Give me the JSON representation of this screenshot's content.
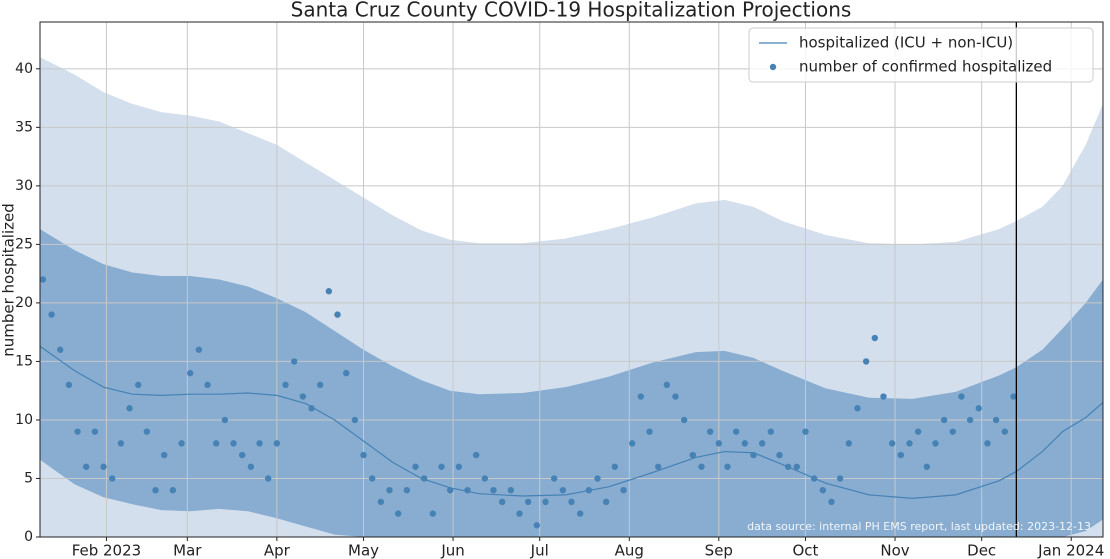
{
  "chart_data": {
    "type": "line",
    "title": "Santa Cruz County COVID-19 Hospitalization Projections",
    "ylabel": "number hospitalized",
    "annotation": "data source: internal PH EMS report, last updated: 2023-12-13",
    "vline": 346,
    "xlim": [
      8,
      376
    ],
    "ylim": [
      0,
      44
    ],
    "xticks": [
      {
        "value": 31,
        "label": "Feb 2023"
      },
      {
        "value": 59,
        "label": "Mar"
      },
      {
        "value": 90,
        "label": "Apr"
      },
      {
        "value": 120,
        "label": "May"
      },
      {
        "value": 151,
        "label": "Jun"
      },
      {
        "value": 181,
        "label": "Jul"
      },
      {
        "value": 212,
        "label": "Aug"
      },
      {
        "value": 243,
        "label": "Sep"
      },
      {
        "value": 273,
        "label": "Oct"
      },
      {
        "value": 304,
        "label": "Nov"
      },
      {
        "value": 334,
        "label": "Dec"
      },
      {
        "value": 365,
        "label": "Jan 2024"
      }
    ],
    "yticks": [
      0,
      5,
      10,
      15,
      20,
      25,
      30,
      35,
      40
    ],
    "grid": true,
    "legend": "upper right",
    "bands": [
      {
        "color": "#d3dfec",
        "x": [
          8,
          20,
          30,
          40,
          50,
          60,
          70,
          80,
          90,
          100,
          110,
          120,
          130,
          140,
          150,
          160,
          175,
          190,
          205,
          220,
          235,
          245,
          255,
          265,
          280,
          295,
          310,
          325,
          340,
          346,
          355,
          362,
          370,
          376
        ],
        "upper": [
          41,
          39.5,
          38,
          37,
          36.3,
          36,
          35.5,
          34.5,
          33.5,
          32,
          30.5,
          29,
          27.5,
          26.2,
          25.4,
          25.1,
          25.1,
          25.5,
          26.3,
          27.3,
          28.5,
          28.8,
          28.2,
          27,
          25.8,
          25.1,
          25,
          25.2,
          26.3,
          27,
          28.2,
          30,
          33.5,
          37
        ],
        "lower": [
          0,
          0,
          0,
          0,
          0,
          0,
          0,
          0,
          0,
          0,
          0,
          0,
          0,
          0,
          0,
          0,
          0,
          0,
          0,
          0,
          0,
          0,
          0,
          0,
          0,
          0,
          0,
          0,
          0,
          0,
          0,
          0,
          0,
          0
        ]
      },
      {
        "color": "#88add1",
        "x": [
          8,
          20,
          30,
          40,
          50,
          60,
          70,
          80,
          90,
          100,
          110,
          120,
          130,
          140,
          150,
          160,
          175,
          190,
          205,
          220,
          235,
          245,
          255,
          265,
          280,
          295,
          310,
          325,
          340,
          346,
          355,
          362,
          370,
          376
        ],
        "upper": [
          26.3,
          24.5,
          23.3,
          22.6,
          22.3,
          22.3,
          22,
          21.4,
          20.4,
          19.2,
          17.6,
          16,
          14.6,
          13.4,
          12.5,
          12.2,
          12.3,
          12.8,
          13.7,
          14.9,
          15.8,
          15.9,
          15.3,
          14.2,
          12.7,
          11.9,
          11.8,
          12.4,
          13.8,
          14.5,
          16,
          17.8,
          20,
          22
        ],
        "lower": [
          6.6,
          4.5,
          3.4,
          2.8,
          2.3,
          2.2,
          2.4,
          2.2,
          1.6,
          0.9,
          0.2,
          0,
          0,
          0,
          0,
          0,
          0,
          0,
          0,
          0,
          0,
          0,
          0,
          0,
          0,
          0,
          0,
          0,
          0,
          0,
          0,
          0,
          0.5,
          1.5
        ]
      }
    ],
    "series": [
      {
        "name": "hospitalized (ICU + non-ICU)",
        "type": "line",
        "color": "#4682b4",
        "x": [
          8,
          20,
          30,
          40,
          50,
          60,
          70,
          80,
          90,
          100,
          110,
          120,
          130,
          140,
          150,
          160,
          175,
          190,
          205,
          220,
          235,
          245,
          255,
          265,
          280,
          295,
          310,
          325,
          340,
          346,
          355,
          362,
          370,
          376
        ],
        "values": [
          16.3,
          14.2,
          12.8,
          12.2,
          12.1,
          12.2,
          12.2,
          12.3,
          12.1,
          11.4,
          10,
          8.2,
          6.4,
          5,
          4.2,
          3.7,
          3.5,
          3.6,
          4.3,
          5.5,
          6.8,
          7.3,
          7.2,
          6.2,
          4.6,
          3.6,
          3.3,
          3.6,
          4.8,
          5.6,
          7.3,
          9,
          10.2,
          11.5
        ]
      },
      {
        "name": "number of confirmed hospitalized",
        "type": "scatter",
        "color": "#4682b4",
        "x": [
          9,
          12,
          15,
          18,
          21,
          24,
          27,
          30,
          33,
          36,
          39,
          42,
          45,
          48,
          51,
          54,
          57,
          60,
          63,
          66,
          69,
          72,
          75,
          78,
          81,
          84,
          87,
          90,
          93,
          96,
          99,
          102,
          105,
          108,
          111,
          114,
          117,
          120,
          123,
          126,
          129,
          132,
          135,
          138,
          141,
          144,
          147,
          150,
          153,
          156,
          159,
          162,
          165,
          168,
          171,
          174,
          177,
          180,
          183,
          186,
          189,
          192,
          195,
          198,
          201,
          204,
          207,
          210,
          213,
          216,
          219,
          222,
          225,
          228,
          231,
          234,
          237,
          240,
          243,
          246,
          249,
          252,
          255,
          258,
          261,
          264,
          267,
          270,
          273,
          276,
          279,
          282,
          285,
          288,
          291,
          294,
          297,
          300,
          303,
          306,
          309,
          312,
          315,
          318,
          321,
          324,
          327,
          330,
          333,
          336,
          339,
          342,
          345
        ],
        "values": [
          22,
          19,
          16,
          13,
          9,
          6,
          9,
          6,
          5,
          8,
          11,
          13,
          9,
          4,
          7,
          4,
          8,
          14,
          16,
          13,
          8,
          10,
          8,
          7,
          6,
          8,
          5,
          8,
          13,
          15,
          12,
          11,
          13,
          21,
          19,
          14,
          10,
          7,
          5,
          3,
          4,
          2,
          4,
          6,
          5,
          2,
          6,
          4,
          6,
          4,
          7,
          5,
          4,
          3,
          4,
          2,
          3,
          1,
          3,
          5,
          4,
          3,
          2,
          4,
          5,
          3,
          6,
          4,
          8,
          12,
          9,
          6,
          13,
          12,
          10,
          7,
          6,
          9,
          8,
          6,
          9,
          8,
          7,
          8,
          9,
          7,
          6,
          6,
          9,
          5,
          4,
          3,
          5,
          8,
          11,
          15,
          17,
          12,
          8,
          7,
          8,
          9,
          6,
          8,
          10,
          9,
          12,
          10,
          11,
          8,
          10,
          9,
          12
        ]
      }
    ]
  }
}
